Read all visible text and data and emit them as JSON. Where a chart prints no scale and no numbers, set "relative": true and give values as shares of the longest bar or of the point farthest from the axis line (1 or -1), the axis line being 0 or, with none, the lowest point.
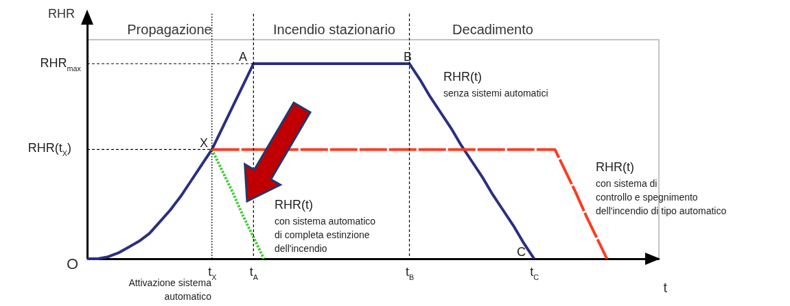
{
  "chart_data": {
    "type": "line",
    "relative": true,
    "xlabel": "t",
    "ylabel": "RHR",
    "categories": [
      null,
      null,
      null,
      null,
      null,
      null,
      null,
      null,
      null,
      null,
      null,
      null,
      "t$_{X}$",
      null,
      null,
      null,
      "t$_{A}$",
      null,
      null,
      null,
      null,
      null,
      null,
      null,
      null,
      null,
      null,
      null,
      null,
      null,
      null,
      "t$_{B}$",
      null,
      null,
      null,
      null,
      null,
      null,
      null,
      null,
      null,
      null,
      null,
      "t$_{C}$",
      null,
      null,
      null,
      null,
      null,
      null,
      null,
      null,
      null,
      null,
      null,
      null
    ],
    "series": [
      {
        "color": "#2b2f7f",
        "line_style": "solid",
        "values": [
          0,
          0,
          0.01,
          0.03,
          0.06,
          0.09,
          0.13,
          0.19,
          0.25,
          0.32,
          0.4,
          0.48,
          0.56,
          0.67,
          0.78,
          0.89,
          1,
          1,
          1,
          1,
          1,
          1,
          1,
          1,
          1,
          1,
          1,
          1,
          1,
          1,
          1,
          1,
          0.92,
          0.83,
          0.75,
          0.67,
          0.58,
          0.5,
          0.42,
          0.33,
          0.25,
          0.17,
          0.08,
          0,
          null,
          null,
          null,
          null,
          null,
          null,
          null,
          null,
          null,
          null,
          null,
          null
        ]
      },
      {
        "color": "#44cc33",
        "line_style": "dotted",
        "values": [
          null,
          null,
          null,
          null,
          null,
          null,
          null,
          null,
          null,
          null,
          null,
          null,
          0.56,
          0.45,
          0.34,
          0.22,
          0.11,
          0,
          null,
          null,
          null,
          null,
          null,
          null,
          null,
          null,
          null,
          null,
          null,
          null,
          null,
          null,
          null,
          null,
          null,
          null,
          null,
          null,
          null,
          null,
          null,
          null,
          null,
          null,
          null,
          null,
          null,
          null,
          null,
          null,
          null,
          null,
          null,
          null,
          null,
          null
        ]
      },
      {
        "color": "#ff3a1e",
        "line_style": "dashed",
        "values": [
          null,
          null,
          null,
          null,
          null,
          null,
          null,
          null,
          null,
          null,
          null,
          null,
          0.56,
          0.56,
          0.56,
          0.56,
          0.56,
          0.56,
          null,
          null,
          0.56,
          0.56,
          0.56,
          0.56,
          0.56,
          0.56,
          0.56,
          0.56,
          0.56,
          0.56,
          0.56,
          0.56,
          0.56,
          0.56,
          0.56,
          0.56,
          0.56,
          0.56,
          0.56,
          0.56,
          0.56,
          0.56,
          0.56,
          0.56,
          0.56,
          0.56,
          0.45,
          0.34,
          0.22,
          0.11,
          0,
          null,
          null,
          null,
          null,
          null
        ]
      },
      {
        "color": "#000000",
        "line_style": "dashed",
        "values": [
          1,
          1,
          1,
          1,
          1,
          1,
          1,
          1,
          1,
          1,
          1,
          1,
          1,
          1,
          1,
          1,
          1,
          null,
          null,
          null,
          null,
          null,
          null,
          null,
          null,
          null,
          null,
          null,
          null,
          null,
          null,
          null,
          null,
          null,
          null,
          null,
          null,
          null,
          null,
          null,
          null,
          null,
          null,
          null,
          null,
          null,
          null,
          null,
          null,
          null,
          null,
          null,
          null,
          null,
          null,
          null
        ]
      },
      {
        "color": "#000000",
        "line_style": "dashed",
        "values": [
          0.56,
          0.56,
          0.56,
          0.56,
          0.56,
          0.56,
          0.56,
          0.56,
          0.56,
          0.56,
          0.56,
          0.56,
          0.56,
          null,
          null,
          null,
          null,
          null,
          null,
          null,
          null,
          null,
          null,
          null,
          null,
          null,
          null,
          null,
          null,
          null,
          null,
          null,
          null,
          null,
          null,
          null,
          null,
          null,
          null,
          null,
          null,
          null,
          null,
          null,
          null,
          null,
          null,
          null,
          null,
          null,
          null,
          null,
          null,
          null,
          null,
          null
        ]
      }
    ],
    "ref_lines": [
      {
        "axis": "x",
        "value": "t$_{X}$",
        "line_style": "dotted"
      },
      {
        "axis": "x",
        "value": "t$_{A}$",
        "line_style": "dashed"
      },
      {
        "axis": "x",
        "value": "t$_{B}$",
        "line_style": "dashed"
      }
    ],
    "annotations": [
      "Propagazione",
      "Incendio stazionario",
      "Decadimento",
      "RHR$_{max}$",
      "RHR(t$_{X}$)",
      "O",
      "A",
      "B",
      "X",
      "C",
      "RHR(t)",
      "senza sistemi automatici",
      "RHR(t)",
      "con sistema automatico\ndi completa estinzione\ndell'incendio",
      "RHR(t)",
      "con sistema di\ncontrollo e spegnimento\ndell'incendio di tipo automatico",
      "Attivazione sistema\nautomatico"
    ]
  }
}
